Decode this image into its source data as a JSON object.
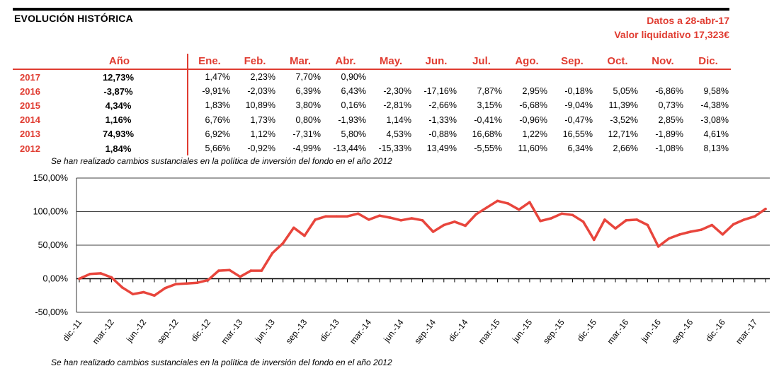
{
  "header": {
    "title": "EVOLUCIÓN HISTÓRICA",
    "date_label": "Datos a 28-abr-17",
    "nav_label": "Valor liquidativo 17,323€"
  },
  "table": {
    "columns": [
      "Año",
      "Ene.",
      "Feb.",
      "Mar.",
      "Abr.",
      "May.",
      "Jun.",
      "Jul.",
      "Ago.",
      "Sep.",
      "Oct.",
      "Nov.",
      "Dic."
    ],
    "rows": [
      {
        "year": "2017",
        "annual": "12,73%",
        "months": [
          "1,47%",
          "2,23%",
          "7,70%",
          "0,90%",
          "",
          "",
          "",
          "",
          "",
          "",
          "",
          ""
        ]
      },
      {
        "year": "2016",
        "annual": "-3,87%",
        "months": [
          "-9,91%",
          "-2,03%",
          "6,39%",
          "6,43%",
          "-2,30%",
          "-17,16%",
          "7,87%",
          "2,95%",
          "-0,18%",
          "5,05%",
          "-6,86%",
          "9,58%"
        ]
      },
      {
        "year": "2015",
        "annual": "4,34%",
        "months": [
          "1,83%",
          "10,89%",
          "3,80%",
          "0,16%",
          "-2,81%",
          "-2,66%",
          "3,15%",
          "-6,68%",
          "-9,04%",
          "11,39%",
          "0,73%",
          "-4,38%"
        ]
      },
      {
        "year": "2014",
        "annual": "1,16%",
        "months": [
          "6,76%",
          "1,73%",
          "0,80%",
          "-1,93%",
          "1,14%",
          "-1,33%",
          "-0,41%",
          "-0,96%",
          "-0,47%",
          "-3,52%",
          "2,85%",
          "-3,08%"
        ]
      },
      {
        "year": "2013",
        "annual": "74,93%",
        "months": [
          "6,92%",
          "1,12%",
          "-7,31%",
          "5,80%",
          "4,53%",
          "-0,88%",
          "16,68%",
          "1,22%",
          "16,55%",
          "12,71%",
          "-1,89%",
          "4,61%"
        ]
      },
      {
        "year": "2012",
        "annual": "1,84%",
        "months": [
          "5,66%",
          "-0,92%",
          "-4,99%",
          "-13,44%",
          "-15,33%",
          "13,49%",
          "-5,55%",
          "11,60%",
          "6,34%",
          "2,66%",
          "-1,08%",
          "8,13%"
        ]
      }
    ]
  },
  "notes": {
    "top": "Se han realizado cambios sustanciales en la política de inversión del fondo en el año 2012",
    "bottom": "Se han realizado cambios sustanciales en la política de inversión del fondo en el año 2012"
  },
  "chart_data": {
    "type": "line",
    "title": "",
    "xlabel": "",
    "ylabel": "",
    "ylim": [
      -50,
      150
    ],
    "yticks": [
      -50,
      0,
      50,
      100,
      150
    ],
    "ytick_labels": [
      "-50,00%",
      "0,00%",
      "50,00%",
      "100,00%",
      "150,00%"
    ],
    "grid": "horizontal",
    "line_color": "#e8453c",
    "xtick_labels": [
      "dic.-11",
      "mar.-12",
      "jun.-12",
      "sep.-12",
      "dic.-12",
      "mar.-13",
      "jun.-13",
      "sep.-13",
      "dic.-13",
      "mar.-14",
      "jun.-14",
      "sep.-14",
      "dic.-14",
      "mar.-15",
      "jun.-15",
      "sep.-15",
      "dic.-15",
      "mar.-16",
      "jun.-16",
      "sep.-16",
      "dic.-16",
      "mar.-17"
    ],
    "x": [
      "dic.-11",
      "ene.-12",
      "feb.-12",
      "mar.-12",
      "abr.-12",
      "may.-12",
      "jun.-12",
      "jul.-12",
      "ago.-12",
      "sep.-12",
      "oct.-12",
      "nov.-12",
      "dic.-12",
      "ene.-13",
      "feb.-13",
      "mar.-13",
      "abr.-13",
      "may.-13",
      "jun.-13",
      "jul.-13",
      "ago.-13",
      "sep.-13",
      "oct.-13",
      "nov.-13",
      "dic.-13",
      "ene.-14",
      "feb.-14",
      "mar.-14",
      "abr.-14",
      "may.-14",
      "jun.-14",
      "jul.-14",
      "ago.-14",
      "sep.-14",
      "oct.-14",
      "nov.-14",
      "dic.-14",
      "ene.-15",
      "feb.-15",
      "mar.-15",
      "abr.-15",
      "may.-15",
      "jun.-15",
      "jul.-15",
      "ago.-15",
      "sep.-15",
      "oct.-15",
      "nov.-15",
      "dic.-15",
      "ene.-16",
      "feb.-16",
      "mar.-16",
      "abr.-16",
      "may.-16",
      "jun.-16",
      "jul.-16",
      "ago.-16",
      "sep.-16",
      "oct.-16",
      "nov.-16",
      "dic.-16",
      "ene.-17",
      "feb.-17",
      "mar.-17",
      "abr.-17"
    ],
    "values": [
      0,
      7,
      8,
      2,
      -13,
      -23,
      -20,
      -25,
      -14,
      -8,
      -7,
      -6,
      -2,
      12,
      13,
      3,
      12,
      12,
      38,
      53,
      76,
      64,
      88,
      93,
      93,
      93,
      97,
      88,
      94,
      91,
      87,
      90,
      87,
      70,
      80,
      85,
      79,
      96,
      106,
      116,
      112,
      103,
      114,
      86,
      90,
      97,
      95,
      85,
      58,
      88,
      75,
      87,
      88,
      80,
      48,
      60,
      66,
      70,
      73,
      80,
      66,
      81,
      88,
      93,
      104
    ]
  }
}
